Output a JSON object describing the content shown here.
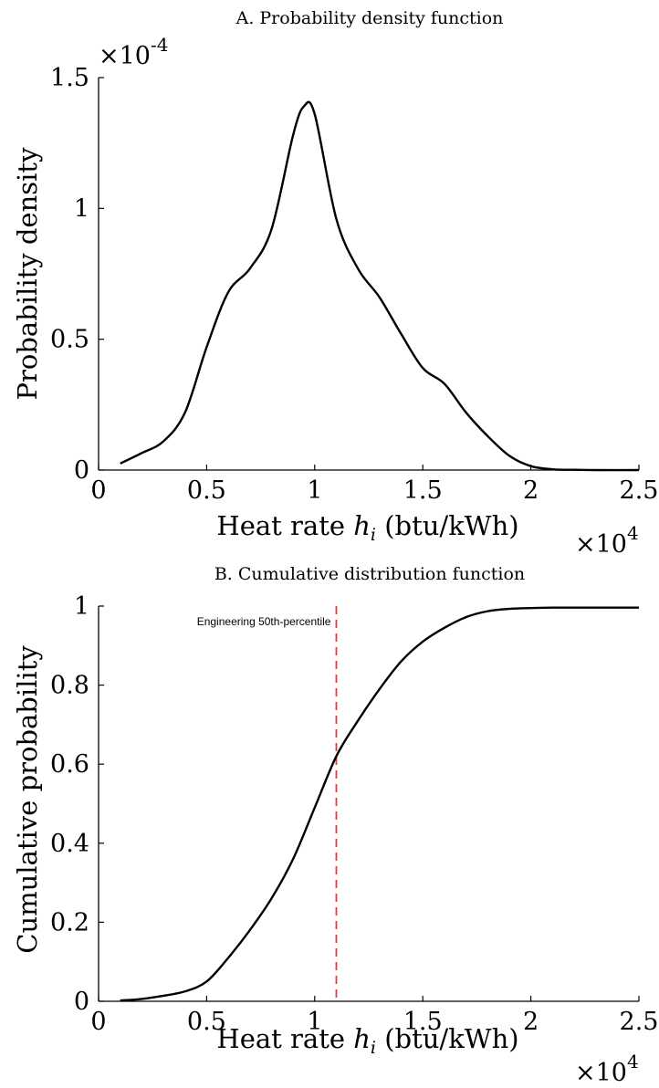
{
  "chart_data": [
    {
      "type": "line",
      "title": "A. Probability density function",
      "xlabel": "Heat rate h_i (btu/kWh)",
      "ylabel": "Probability density",
      "x_multiplier": "×10^4",
      "y_multiplier": "×10^-4",
      "xlim": [
        0,
        25000
      ],
      "ylim": [
        0,
        0.00015
      ],
      "xticks": [
        0,
        5000,
        10000,
        15000,
        20000,
        25000
      ],
      "xtick_labels": [
        "0",
        "0.5",
        "1",
        "1.5",
        "2",
        "2.5"
      ],
      "yticks": [
        0,
        5e-05,
        0.0001,
        0.00015
      ],
      "ytick_labels": [
        "0",
        "0.5",
        "1",
        "1.5"
      ],
      "grid": false,
      "series": [
        {
          "color": "#000000",
          "x": [
            1000,
            2000,
            3000,
            4000,
            5000,
            6000,
            7000,
            8000,
            9000,
            9500,
            10000,
            11000,
            12000,
            13000,
            14000,
            15000,
            16000,
            17000,
            18000,
            19000,
            20000,
            21000,
            22000,
            23000,
            25000
          ],
          "y": [
            2.5e-06,
            6.5e-06,
            1.1e-05,
            2.2e-05,
            4.7e-05,
            6.8e-05,
            7.7e-05,
            9.2e-05,
            0.000128,
            0.000139,
            0.000136,
            9.6e-05,
            7.7e-05,
            6.6e-05,
            5.2e-05,
            3.9e-05,
            3.3e-05,
            2.2e-05,
            1.3e-05,
            5.5e-06,
            1.5e-06,
            3e-07,
            1e-07,
            0,
            0
          ]
        }
      ]
    },
    {
      "type": "line",
      "title": "B. Cumulative distribution function",
      "xlabel": "Heat rate h_i (btu/kWh)",
      "ylabel": "Cumulative probability",
      "x_multiplier": "×10^4",
      "xlim": [
        0,
        25000
      ],
      "ylim": [
        0,
        1
      ],
      "xticks": [
        0,
        5000,
        10000,
        15000,
        20000,
        25000
      ],
      "xtick_labels": [
        "0",
        "0.5",
        "1",
        "1.5",
        "2",
        "2.5"
      ],
      "yticks": [
        0,
        0.2,
        0.4,
        0.6,
        0.8,
        1
      ],
      "ytick_labels": [
        "0",
        "0.2",
        "0.4",
        "0.6",
        "0.8",
        "1"
      ],
      "grid": false,
      "series": [
        {
          "color": "#000000",
          "x": [
            1000,
            2000,
            3000,
            4000,
            5000,
            6000,
            7000,
            8000,
            9000,
            10000,
            11000,
            12000,
            13000,
            14000,
            15000,
            16000,
            17000,
            18000,
            19000,
            20000,
            21000,
            22000,
            25000
          ],
          "y": [
            0.002,
            0.006,
            0.014,
            0.025,
            0.05,
            0.11,
            0.18,
            0.26,
            0.36,
            0.49,
            0.62,
            0.71,
            0.79,
            0.86,
            0.91,
            0.945,
            0.972,
            0.987,
            0.993,
            0.995,
            0.996,
            0.996,
            0.996
          ]
        }
      ],
      "reference_line": {
        "x": 11000,
        "color": "#e8383d",
        "style": "dashed",
        "label": "Engineering 50th-percentile"
      }
    }
  ]
}
